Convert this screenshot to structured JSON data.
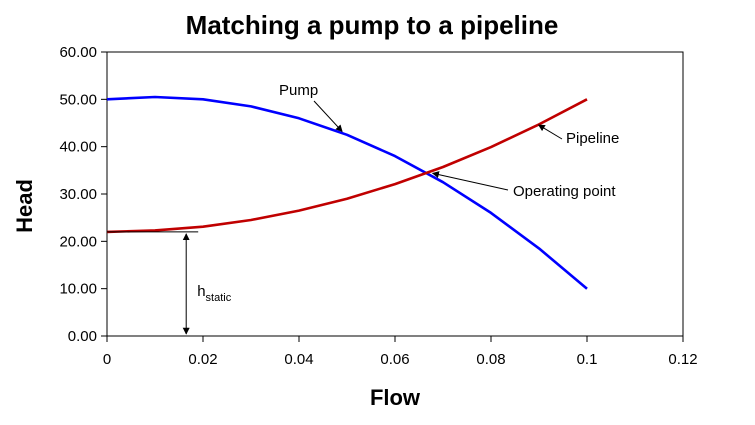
{
  "chart_data": {
    "type": "line",
    "title": "Matching a pump to a pipeline",
    "xlabel": "Flow",
    "ylabel": "Head",
    "xlim": [
      0,
      0.12
    ],
    "ylim": [
      0,
      60
    ],
    "x_ticks": [
      "0",
      "0.02",
      "0.04",
      "0.06",
      "0.08",
      "0.1",
      "0.12"
    ],
    "y_ticks": [
      "0.00",
      "10.00",
      "20.00",
      "30.00",
      "40.00",
      "50.00",
      "60.00"
    ],
    "grid": false,
    "legend": "none",
    "series": [
      {
        "name": "Pump",
        "color": "#0000ff",
        "x": [
          0,
          0.01,
          0.02,
          0.03,
          0.04,
          0.05,
          0.06,
          0.07,
          0.08,
          0.09,
          0.1
        ],
        "y": [
          50.0,
          50.5,
          50.0,
          48.5,
          46.0,
          42.5,
          38.0,
          32.5,
          26.0,
          18.5,
          10.0
        ]
      },
      {
        "name": "Pipeline",
        "color": "#c00000",
        "x": [
          0,
          0.01,
          0.02,
          0.03,
          0.04,
          0.05,
          0.06,
          0.07,
          0.08,
          0.09,
          0.1
        ],
        "y": [
          22.0,
          22.3,
          23.1,
          24.5,
          26.5,
          29.0,
          32.1,
          35.7,
          39.9,
          44.7,
          50.0
        ]
      }
    ],
    "annotations": {
      "pump_label": "Pump",
      "pipeline_label": "Pipeline",
      "operating_point_label": "Operating point",
      "hstatic_main": "h",
      "hstatic_sub": "static",
      "operating_point": {
        "x": 0.067,
        "y": 34.6
      },
      "hstatic_x": 0.0165,
      "hstatic_value": 22.0
    }
  }
}
